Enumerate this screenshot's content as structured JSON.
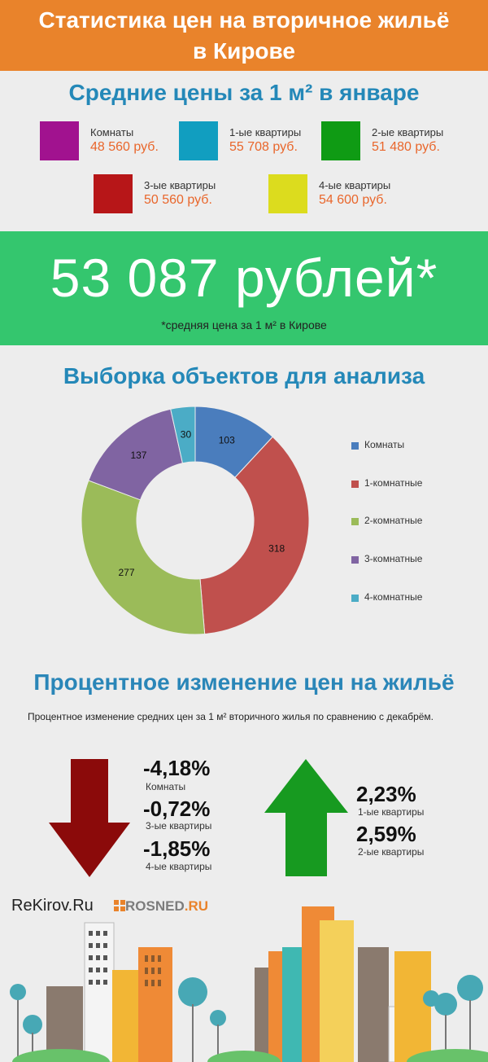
{
  "header": {
    "line1": "Статистика цен на вторичное жильё",
    "line2": "в Кирове"
  },
  "prices_section": {
    "title": "Средние цены за 1 м² в январе",
    "items": [
      {
        "label": "Комнаты",
        "price": "48 560 руб.",
        "color": "#a1128f"
      },
      {
        "label": "1-ые квартиры",
        "price": "55 708 руб.",
        "color": "#119ec0"
      },
      {
        "label": "2-ые квартиры",
        "price": "51 480 руб.",
        "color": "#0f9b14"
      },
      {
        "label": "3-ые квартиры",
        "price": "50 560 руб.",
        "color": "#b71618"
      },
      {
        "label": "4-ые квартиры",
        "price": "54 600 руб.",
        "color": "#dcdc1e"
      }
    ]
  },
  "average": {
    "value": "53 087 рублей*",
    "note": "*средняя цена за 1 м² в Кирове"
  },
  "sample_section": {
    "title": "Выборка объектов для анализа"
  },
  "chart_data": {
    "type": "pie",
    "categories": [
      "Комнаты",
      "1-комнатные",
      "2-комнатные",
      "3-комнатные",
      "4-комнатные"
    ],
    "values": [
      103,
      318,
      277,
      137,
      30
    ],
    "colors": [
      "#4a7dbd",
      "#c0504d",
      "#9bbb59",
      "#8064a2",
      "#4bacc6"
    ],
    "donut": true,
    "legend_position": "right"
  },
  "change_section": {
    "title": "Процентное изменение цен на жильё",
    "note": "Процентное изменение средних цен за 1 м² вторичного жилья по сравнению с декабрём.",
    "down": [
      {
        "value": "-4,18%",
        "label": "Комнаты"
      },
      {
        "value": "-0,72%",
        "label": "3-ые квартиры"
      },
      {
        "value": "-1,85%",
        "label": "4-ые квартиры"
      }
    ],
    "up": [
      {
        "value": "2,23%",
        "label": "1-ые квартиры"
      },
      {
        "value": "2,59%",
        "label": "2-ые квартиры"
      }
    ],
    "down_arrow_color": "#8b0a0a",
    "up_arrow_color": "#179a20"
  },
  "footer": {
    "logo_left": "ReKirov.Ru",
    "logo_right_main": "ROSNED",
    "logo_right_suffix": ".RU"
  }
}
